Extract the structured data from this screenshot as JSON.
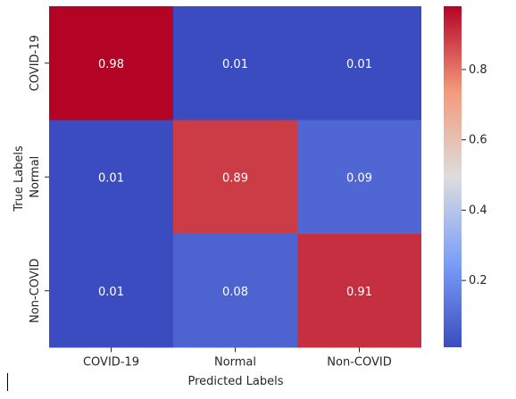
{
  "chart_data": {
    "type": "heatmap",
    "title": "",
    "xlabel": "Predicted Labels",
    "ylabel": "True Labels",
    "x_categories": [
      "COVID-19",
      "Normal",
      "Non-COVID"
    ],
    "y_categories": [
      "COVID-19",
      "Normal",
      "Non-COVID"
    ],
    "values": [
      [
        0.98,
        0.01,
        0.01
      ],
      [
        0.01,
        0.89,
        0.09
      ],
      [
        0.01,
        0.08,
        0.91
      ]
    ],
    "value_labels": [
      [
        "0.98",
        "0.01",
        "0.01"
      ],
      [
        "0.01",
        "0.89",
        "0.09"
      ],
      [
        "0.01",
        "0.08",
        "0.91"
      ]
    ],
    "colormap": "coolwarm",
    "colorbar": {
      "range": [
        0.01,
        0.98
      ],
      "ticks": [
        0.2,
        0.4,
        0.6,
        0.8
      ],
      "tick_labels": [
        "0.2",
        "0.4",
        "0.6",
        "0.8"
      ]
    }
  }
}
